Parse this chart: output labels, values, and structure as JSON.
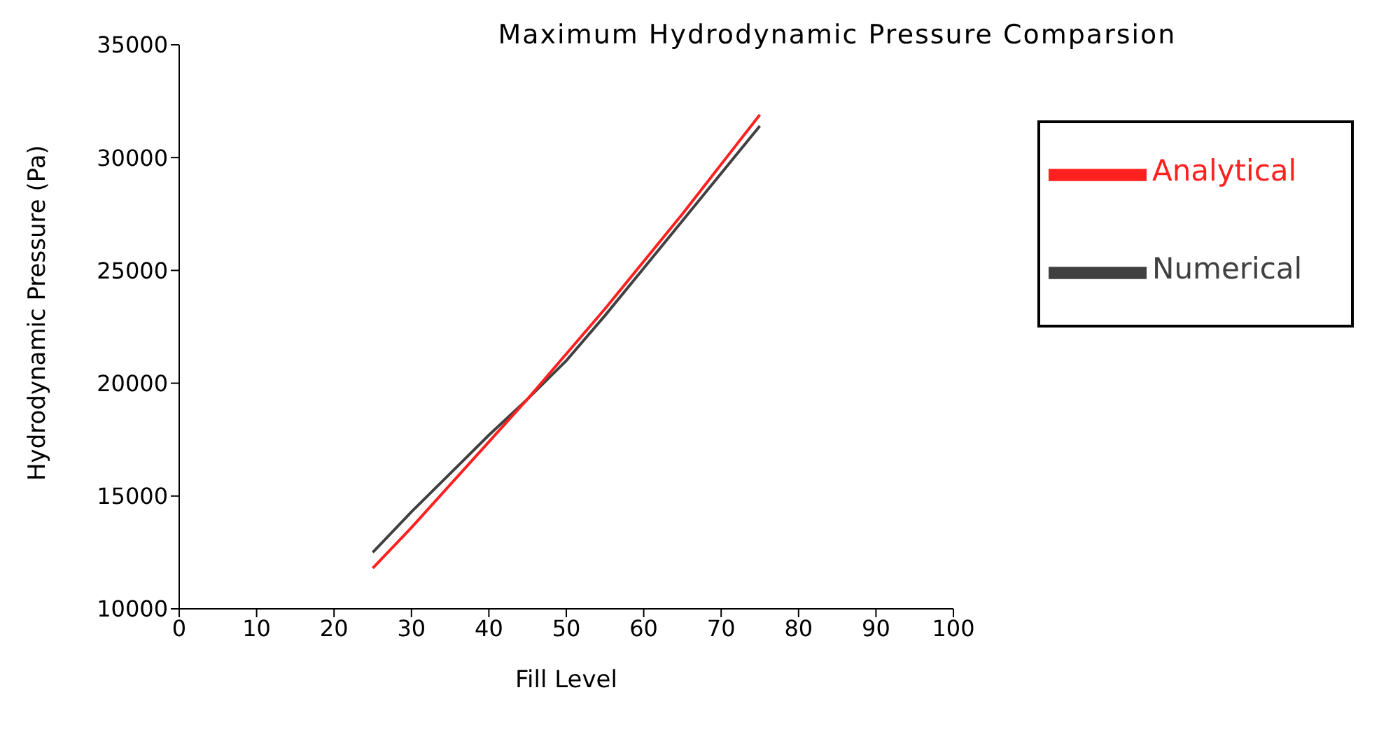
{
  "chart_data": {
    "type": "line",
    "title": "Maximum Hydrodynamic Pressure Comparsion",
    "xlabel": "Fill Level",
    "ylabel": "Hydrodynamic Pressure (Pa)",
    "x": [
      25,
      30,
      35,
      40,
      45,
      50,
      55,
      60,
      65,
      70,
      75
    ],
    "series": [
      {
        "name": "Numerical",
        "color": "#404040",
        "values": [
          12500,
          14300,
          16000,
          17700,
          19300,
          21000,
          23000,
          25100,
          27200,
          29300,
          31400
        ]
      },
      {
        "name": "Analytical",
        "color": "#ff2020",
        "values": [
          11800,
          13600,
          15500,
          17400,
          19300,
          21300,
          23300,
          25400,
          27500,
          29700,
          31900
        ]
      }
    ],
    "xlim": [
      0,
      100
    ],
    "xticks": [
      0,
      10,
      20,
      30,
      40,
      50,
      60,
      70,
      80,
      90,
      100
    ],
    "ylim": [
      10000,
      35000
    ],
    "yticks": [
      10000,
      15000,
      20000,
      25000,
      30000,
      35000
    ],
    "grid": false,
    "legend": "top right",
    "marker": "none",
    "line_style": "solid"
  }
}
